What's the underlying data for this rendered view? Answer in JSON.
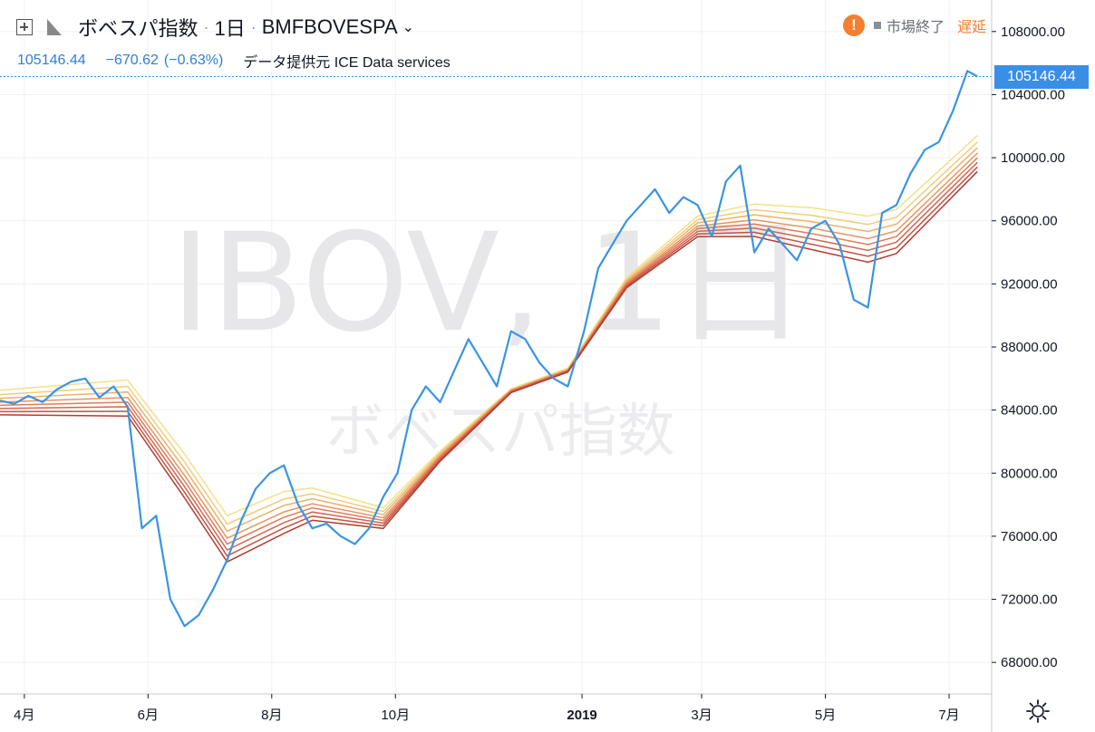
{
  "header": {
    "symbol_name": "ボベスパ指数",
    "interval": "1日",
    "exchange_symbol": "BMFBOVESPA",
    "last_price": "105146.44",
    "change": "−670.62",
    "change_pct": "(−0.63%)",
    "data_provider": "データ提供元 ICE Data services"
  },
  "status": {
    "market_status": "市場終了",
    "delay_label": "遅延"
  },
  "watermark": {
    "ticker": "IBOV, 1日",
    "name": "ボベスパ指数"
  },
  "price_tag": "105146.44",
  "colors": {
    "price_line": "#3a94e4",
    "accent_orange": "#f57f2f",
    "ribbon": [
      "#f3e08a",
      "#f1cc7a",
      "#edb06a",
      "#e9935f",
      "#e07a58",
      "#d46650",
      "#c55244",
      "#b03e30"
    ]
  },
  "chart_data": {
    "type": "line",
    "title": "",
    "xlabel": "",
    "ylabel": "",
    "x_ticks": [
      {
        "label": "4月",
        "date": "2018-04-01"
      },
      {
        "label": "6月",
        "date": "2018-06-01"
      },
      {
        "label": "8月",
        "date": "2018-08-01"
      },
      {
        "label": "10月",
        "date": "2018-10-01"
      },
      {
        "label": "2019",
        "date": "2019-01-01",
        "bold": true
      },
      {
        "label": "3月",
        "date": "2019-03-01"
      },
      {
        "label": "5月",
        "date": "2019-05-01"
      },
      {
        "label": "7月",
        "date": "2019-07-01"
      }
    ],
    "y_ticks": [
      68000,
      72000,
      76000,
      80000,
      84000,
      88000,
      92000,
      96000,
      100000,
      104000,
      108000
    ],
    "ylim": [
      66000,
      110000
    ],
    "xlim": [
      "2018-03-20",
      "2019-07-22"
    ],
    "grid": true,
    "series": [
      {
        "type": "line",
        "points": [
          [
            "2018-03-20",
            84600
          ],
          [
            "2018-03-27",
            84400
          ],
          [
            "2018-04-03",
            84900
          ],
          [
            "2018-04-10",
            84500
          ],
          [
            "2018-04-17",
            85300
          ],
          [
            "2018-04-24",
            85800
          ],
          [
            "2018-05-01",
            86000
          ],
          [
            "2018-05-08",
            84800
          ],
          [
            "2018-05-15",
            85500
          ],
          [
            "2018-05-22",
            84200
          ],
          [
            "2018-05-29",
            76500
          ],
          [
            "2018-06-05",
            77300
          ],
          [
            "2018-06-12",
            72000
          ],
          [
            "2018-06-19",
            70300
          ],
          [
            "2018-06-26",
            71000
          ],
          [
            "2018-07-03",
            72600
          ],
          [
            "2018-07-10",
            74500
          ],
          [
            "2018-07-17",
            77000
          ],
          [
            "2018-07-24",
            79000
          ],
          [
            "2018-07-31",
            80000
          ],
          [
            "2018-08-07",
            80500
          ],
          [
            "2018-08-14",
            78000
          ],
          [
            "2018-08-21",
            76500
          ],
          [
            "2018-08-28",
            76800
          ],
          [
            "2018-09-04",
            76000
          ],
          [
            "2018-09-11",
            75500
          ],
          [
            "2018-09-18",
            76500
          ],
          [
            "2018-09-25",
            78500
          ],
          [
            "2018-10-02",
            80000
          ],
          [
            "2018-10-09",
            84000
          ],
          [
            "2018-10-16",
            85500
          ],
          [
            "2018-10-23",
            84500
          ],
          [
            "2018-10-30",
            86500
          ],
          [
            "2018-11-06",
            88500
          ],
          [
            "2018-11-13",
            87000
          ],
          [
            "2018-11-20",
            85500
          ],
          [
            "2018-11-27",
            89000
          ],
          [
            "2018-12-04",
            88500
          ],
          [
            "2018-12-11",
            87000
          ],
          [
            "2018-12-18",
            86000
          ],
          [
            "2018-12-25",
            85500
          ],
          [
            "2019-01-02",
            89000
          ],
          [
            "2019-01-09",
            93000
          ],
          [
            "2019-01-16",
            94500
          ],
          [
            "2019-01-23",
            96000
          ],
          [
            "2019-01-30",
            97000
          ],
          [
            "2019-02-06",
            98000
          ],
          [
            "2019-02-13",
            96500
          ],
          [
            "2019-02-20",
            97500
          ],
          [
            "2019-02-27",
            97000
          ],
          [
            "2019-03-06",
            95000
          ],
          [
            "2019-03-13",
            98500
          ],
          [
            "2019-03-20",
            99500
          ],
          [
            "2019-03-27",
            94000
          ],
          [
            "2019-04-03",
            95500
          ],
          [
            "2019-04-10",
            94500
          ],
          [
            "2019-04-17",
            93500
          ],
          [
            "2019-04-24",
            95500
          ],
          [
            "2019-05-01",
            96000
          ],
          [
            "2019-05-08",
            94500
          ],
          [
            "2019-05-15",
            91000
          ],
          [
            "2019-05-22",
            90500
          ],
          [
            "2019-05-29",
            96500
          ],
          [
            "2019-06-05",
            97000
          ],
          [
            "2019-06-12",
            99000
          ],
          [
            "2019-06-19",
            100500
          ],
          [
            "2019-06-26",
            101000
          ],
          [
            "2019-07-03",
            103000
          ],
          [
            "2019-07-10",
            105500
          ],
          [
            "2019-07-15",
            105146
          ]
        ]
      },
      {
        "type": "ribbon",
        "points": [
          [
            "2018-03-20",
            84300
          ],
          [
            "2018-05-22",
            84500
          ],
          [
            "2018-06-19",
            79500
          ],
          [
            "2018-07-10",
            75500
          ],
          [
            "2018-08-07",
            77200
          ],
          [
            "2018-08-21",
            77800
          ],
          [
            "2018-09-25",
            77000
          ],
          [
            "2018-10-23",
            81000
          ],
          [
            "2018-11-27",
            85200
          ],
          [
            "2018-12-25",
            86500
          ],
          [
            "2019-01-23",
            92000
          ],
          [
            "2019-02-27",
            95500
          ],
          [
            "2019-03-27",
            95800
          ],
          [
            "2019-04-24",
            95200
          ],
          [
            "2019-05-22",
            94500
          ],
          [
            "2019-06-05",
            95000
          ],
          [
            "2019-07-15",
            100000
          ]
        ]
      }
    ]
  }
}
